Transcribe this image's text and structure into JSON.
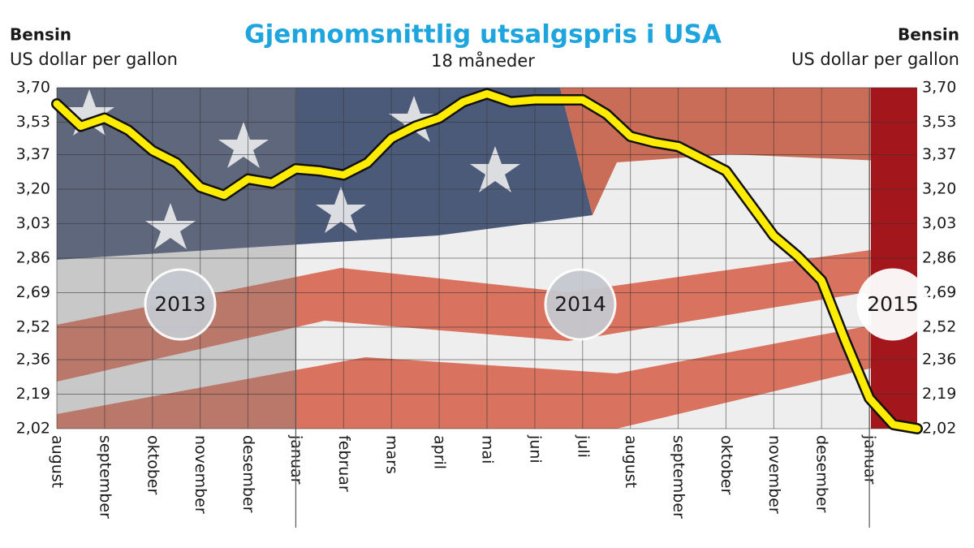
{
  "chart_data": {
    "type": "line",
    "title": "Gjennomsnittlig utsalgspris i USA",
    "subtitle": "18 måneder",
    "ylabel": "Bensin",
    "ylabel_unit": "US dollar per gallon",
    "annotations": [
      "2013",
      "2014",
      "2015"
    ],
    "categories": [
      "august",
      null,
      "september",
      null,
      "oktober",
      null,
      "november",
      null,
      "desember",
      null,
      "januar",
      null,
      "februar",
      null,
      "mars",
      null,
      "april",
      null,
      "mai",
      null,
      "juni",
      null,
      "juli",
      null,
      "august",
      null,
      "september",
      null,
      "oktober",
      null,
      "november",
      null,
      "desember",
      null,
      "januar",
      null,
      null
    ],
    "values": [
      3.62,
      3.51,
      3.55,
      3.49,
      3.39,
      3.33,
      3.21,
      3.17,
      3.25,
      3.23,
      3.3,
      3.29,
      3.27,
      3.33,
      3.45,
      3.51,
      3.55,
      3.63,
      3.67,
      3.63,
      3.64,
      3.64,
      3.64,
      3.57,
      3.46,
      3.43,
      3.41,
      3.35,
      3.29,
      3.13,
      2.97,
      2.87,
      2.75,
      2.45,
      2.17,
      2.04,
      2.02
    ],
    "color": "#ffec00",
    "ylim": [
      2.02,
      3.7
    ],
    "yticks": [
      {
        "value": 3.7,
        "label": "3,70"
      },
      {
        "value": 3.53,
        "label": "3,53"
      },
      {
        "value": 3.37,
        "label": "3,37"
      },
      {
        "value": 3.2,
        "label": "3,20"
      },
      {
        "value": 3.03,
        "label": "3,03"
      },
      {
        "value": 2.86,
        "label": "2,86"
      },
      {
        "value": 2.69,
        "label": "2,69"
      },
      {
        "value": 2.52,
        "label": "2,52"
      },
      {
        "value": 2.36,
        "label": "2,36"
      },
      {
        "value": 2.19,
        "label": "2,19"
      },
      {
        "value": 2.02,
        "label": "2,02"
      }
    ],
    "grid": true
  }
}
